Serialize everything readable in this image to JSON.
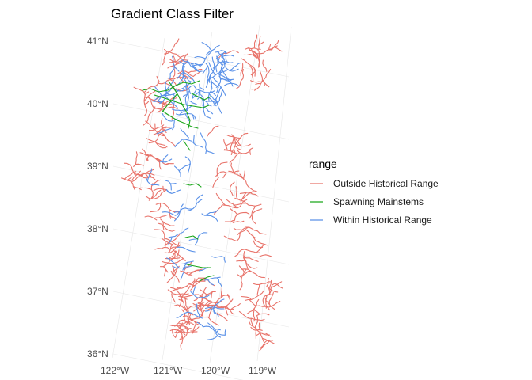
{
  "title": "Gradient Class Filter",
  "legend": {
    "title": "range",
    "items": [
      {
        "label": "Outside Historical Range",
        "color": "#e8736a"
      },
      {
        "label": "Spawning Mainstems",
        "color": "#1aa61a"
      },
      {
        "label": "Within Historical Range",
        "color": "#5a91e8"
      }
    ]
  },
  "axes": {
    "lat_labels": [
      "41°N",
      "40°N",
      "39°N",
      "38°N",
      "37°N",
      "36°N"
    ],
    "lon_labels": [
      "122°W",
      "121°W",
      "120°W",
      "119°W"
    ]
  }
}
